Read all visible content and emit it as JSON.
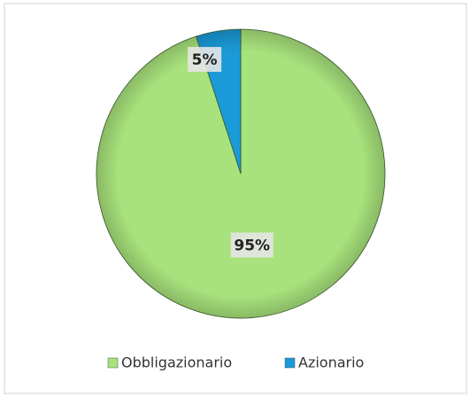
{
  "chart_data": {
    "type": "pie",
    "categories": [
      "Obbligazionario",
      "Azionario"
    ],
    "values": [
      95,
      5
    ],
    "value_labels": [
      "95%",
      "5%"
    ],
    "colors": [
      "#a8e27c",
      "#1a9ad6"
    ]
  }
}
